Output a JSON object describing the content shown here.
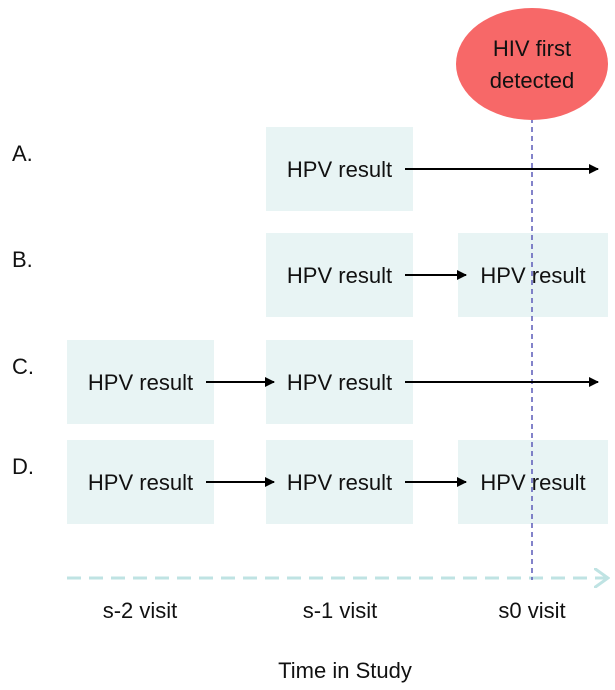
{
  "marker": {
    "line1": "HIV first",
    "line2": "detected"
  },
  "rows": [
    {
      "label": "A.",
      "boxes": [
        "HPV result"
      ]
    },
    {
      "label": "B.",
      "boxes": [
        "HPV result",
        "HPV result"
      ]
    },
    {
      "label": "C.",
      "boxes": [
        "HPV result",
        "HPV result"
      ]
    },
    {
      "label": "D.",
      "boxes": [
        "HPV result",
        "HPV result",
        "HPV result"
      ]
    }
  ],
  "visits": [
    "s-2 visit",
    "s-1 visit",
    "s0 visit"
  ],
  "axis_title": "Time in Study"
}
